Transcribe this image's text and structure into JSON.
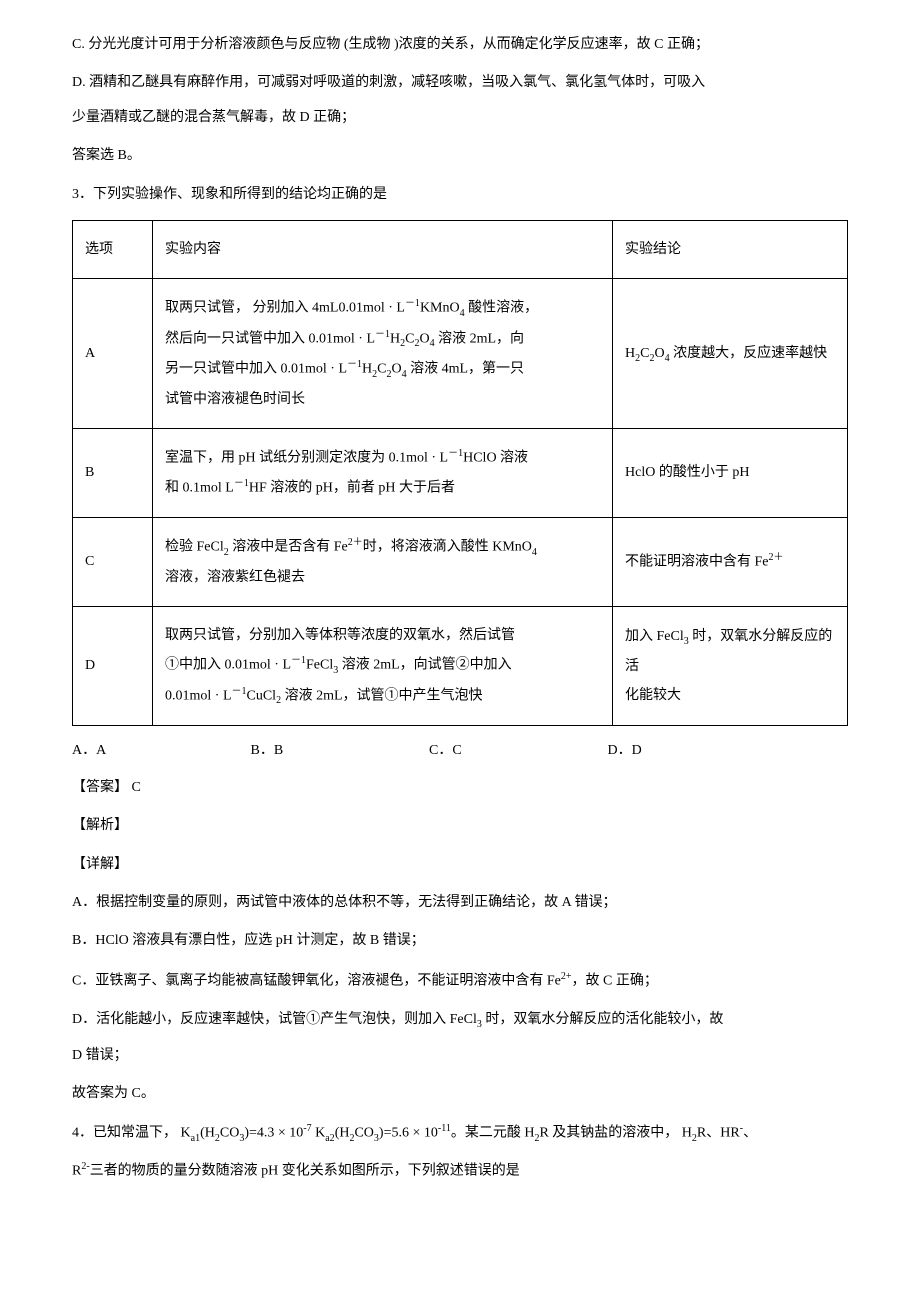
{
  "intro": {
    "p1": "C. 分光光度计可用于分析溶液颜色与反应物    (生成物 )浓度的关系，从而确定化学反应速率，故      C 正确；",
    "p2": "D. 酒精和乙醚具有麻醉作用，可减弱对呼吸道的刺激，减轻咳嗽，当吸入氯气、氯化氢气体时，可吸入",
    "p3": "少量酒精或乙醚的混合蒸气解毒，故      D 正确；",
    "p4": "答案选  B。"
  },
  "q3": {
    "stem": "3．下列实验操作、现象和所得到的结论均正确的是",
    "header": {
      "c1": "选项",
      "c2": "实验内容",
      "c3": "实验结论"
    },
    "rowA": {
      "opt": "A",
      "content_l1": "取两只试管， 分别加入   4mL0.01mol · L",
      "content_l1_sup": "－1",
      "content_l1b": "KMnO",
      "content_l1_sub": "4",
      "content_l1c": " 酸性溶液，",
      "content_l2": "然后向一只试管中加入    0.01mol · L",
      "content_l2_sup": "－1",
      "content_l2b": "H",
      "content_l2b_sub": "2",
      "content_l2c": "C",
      "content_l2c_sub": "2",
      "content_l2d": "O",
      "content_l2d_sub": "4",
      "content_l2e": " 溶液  2mL，向",
      "content_l3": "另一只试管中加入   0.01mol · L",
      "content_l3_sup": "－1",
      "content_l3b": "H",
      "content_l3b_sub": "2",
      "content_l3c": "C",
      "content_l3c_sub": "2",
      "content_l3d": "O",
      "content_l3d_sub": "4",
      "content_l3e": " 溶液  4mL，第一只",
      "content_l4": "试管中溶液褪色时间长",
      "result_a": "H",
      "result_a_sub": "2",
      "result_b": "C",
      "result_b_sub": "2",
      "result_c": "O",
      "result_c_sub": "4",
      "result_d": " 浓度越大，反应速率越快"
    },
    "rowB": {
      "opt": "B",
      "content_l1": "室温下，用 pH 试纸分别测定浓度为    0.1mol · L",
      "content_l1_sup": "－1",
      "content_l1b": "HClO 溶液",
      "content_l2a": "和 0.1mol L",
      "content_l2_specialchar": "Ł",
      "content_l2_sup": "－1",
      "content_l2b": "HF 溶液的  pH，前者 pH 大于后者",
      "result": "HclO 的酸性小于   pH"
    },
    "rowC": {
      "opt": "C",
      "content_l1a": "检验 FeCl",
      "content_l1a_sub": "2",
      "content_l1b": " 溶液中是否含有   Fe",
      "content_l1b_sup": "2＋",
      "content_l1c": "时，将溶液滴入酸性    KMnO",
      "content_l1c_sub": "4",
      "content_l2": "溶液，溶液紫红色褪去",
      "result_a": "不能证明溶液中含有     Fe",
      "result_sup": "2＋"
    },
    "rowD": {
      "opt": "D",
      "content_l1": "取两只试管，分别加入等体积等浓度的双氧水，然后试管",
      "content_l2a": "①中加入  0.01mol · L",
      "content_l2a_sup": "－1",
      "content_l2b": "FeCl",
      "content_l2b_sub": "3",
      "content_l2c": " 溶液  2mL，向试管②中加入",
      "content_l3a": "0.01mol · L",
      "content_l3a_sup": "－1",
      "content_l3b": "CuCl",
      "content_l3b_sub": "2",
      "content_l3c": " 溶液  2mL，试管①中产生气泡快",
      "result_l1a": "加入  FeCl",
      "result_l1a_sub": "3",
      "result_l1b": " 时，双氧水分解反应的活",
      "result_l2": "化能较大"
    },
    "options": {
      "a": "A．A",
      "b": "B．B",
      "c": "C．C",
      "d": "D．D"
    },
    "answer": "【答案】 C",
    "explain_label": "【解析】",
    "detail_label": "【详解】",
    "expA": "A．根据控制变量的原则，两试管中液体的总体积不等，无法得到正确结论，故          A 错误；",
    "expB": "B．HClO 溶液具有漂白性，应选    pH 计测定，故  B 错误；",
    "expC_a": "C．亚铁离子、氯离子均能被高锰酸钾氧化，溶液褪色，不能证明溶液中含有          Fe",
    "expC_sup": "2+",
    "expC_b": "，故 C 正确；",
    "expD_a": "D．活化能越小，反应速率越快，试管①产生气泡快，则加入       FeCl",
    "expD_sub": "3",
    "expD_b": " 时，双氧水分解反应的活化能较小，故",
    "expD2": "D 错误；",
    "conc": "故答案为  C。"
  },
  "q4": {
    "stem_a": "4．已知常温下，    K",
    "stem_a_sub1": "a1",
    "stem_b": "(H",
    "stem_b_sub": "2",
    "stem_c": "CO",
    "stem_c_sub": "3",
    "stem_d": ")=4.3  × 10",
    "stem_d_sup": "-7",
    "stem_e": " K",
    "stem_e_sub": "a2",
    "stem_f": "(H",
    "stem_f_sub": "2",
    "stem_g": "CO",
    "stem_g_sub": "3",
    "stem_h": ")=5.6  × 10",
    "stem_h_sup": "-11",
    "stem_i": "。某二元酸    H",
    "stem_i_sub": "2",
    "stem_j": "R 及其钠盐的溶液中，   H",
    "stem_j_sub": "2",
    "stem_k": "R、HR",
    "stem_k_sup": "-",
    "stem_l": "、",
    "stem2_a": "R",
    "stem2_a_sup": "2-",
    "stem2_b": "三者的物质的量分数随溶液     pH 变化关系如图所示，下列叙述错误的是"
  }
}
